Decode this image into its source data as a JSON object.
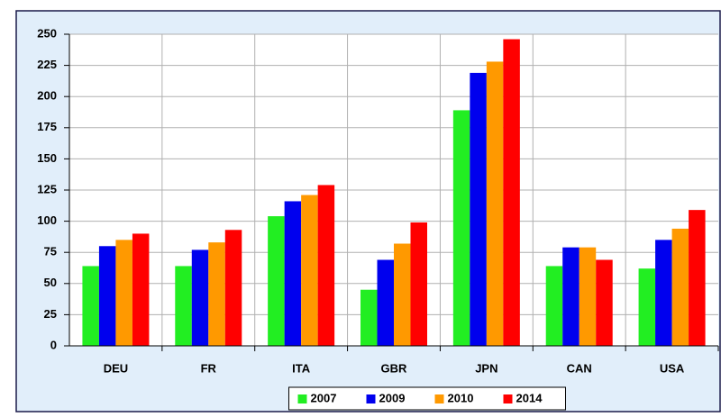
{
  "chart_data": {
    "type": "bar",
    "categories": [
      "DEU",
      "FR",
      "ITA",
      "GBR",
      "JPN",
      "CAN",
      "USA"
    ],
    "series": [
      {
        "name": "2007",
        "color": "#22ee22",
        "values": [
          64,
          64,
          104,
          45,
          189,
          64,
          62
        ]
      },
      {
        "name": "2009",
        "color": "#0000ee",
        "values": [
          80,
          77,
          116,
          69,
          219,
          79,
          85
        ]
      },
      {
        "name": "2010",
        "color": "#ff9900",
        "values": [
          85,
          83,
          121,
          82,
          228,
          79,
          94
        ]
      },
      {
        "name": "2014",
        "color": "#ff0000",
        "values": [
          90,
          93,
          129,
          99,
          246,
          69,
          109
        ]
      }
    ],
    "ylim": [
      0,
      250
    ],
    "yticks": [
      0,
      25,
      50,
      75,
      100,
      125,
      150,
      175,
      200,
      225,
      250
    ],
    "grid": true,
    "legend": "bottom"
  }
}
